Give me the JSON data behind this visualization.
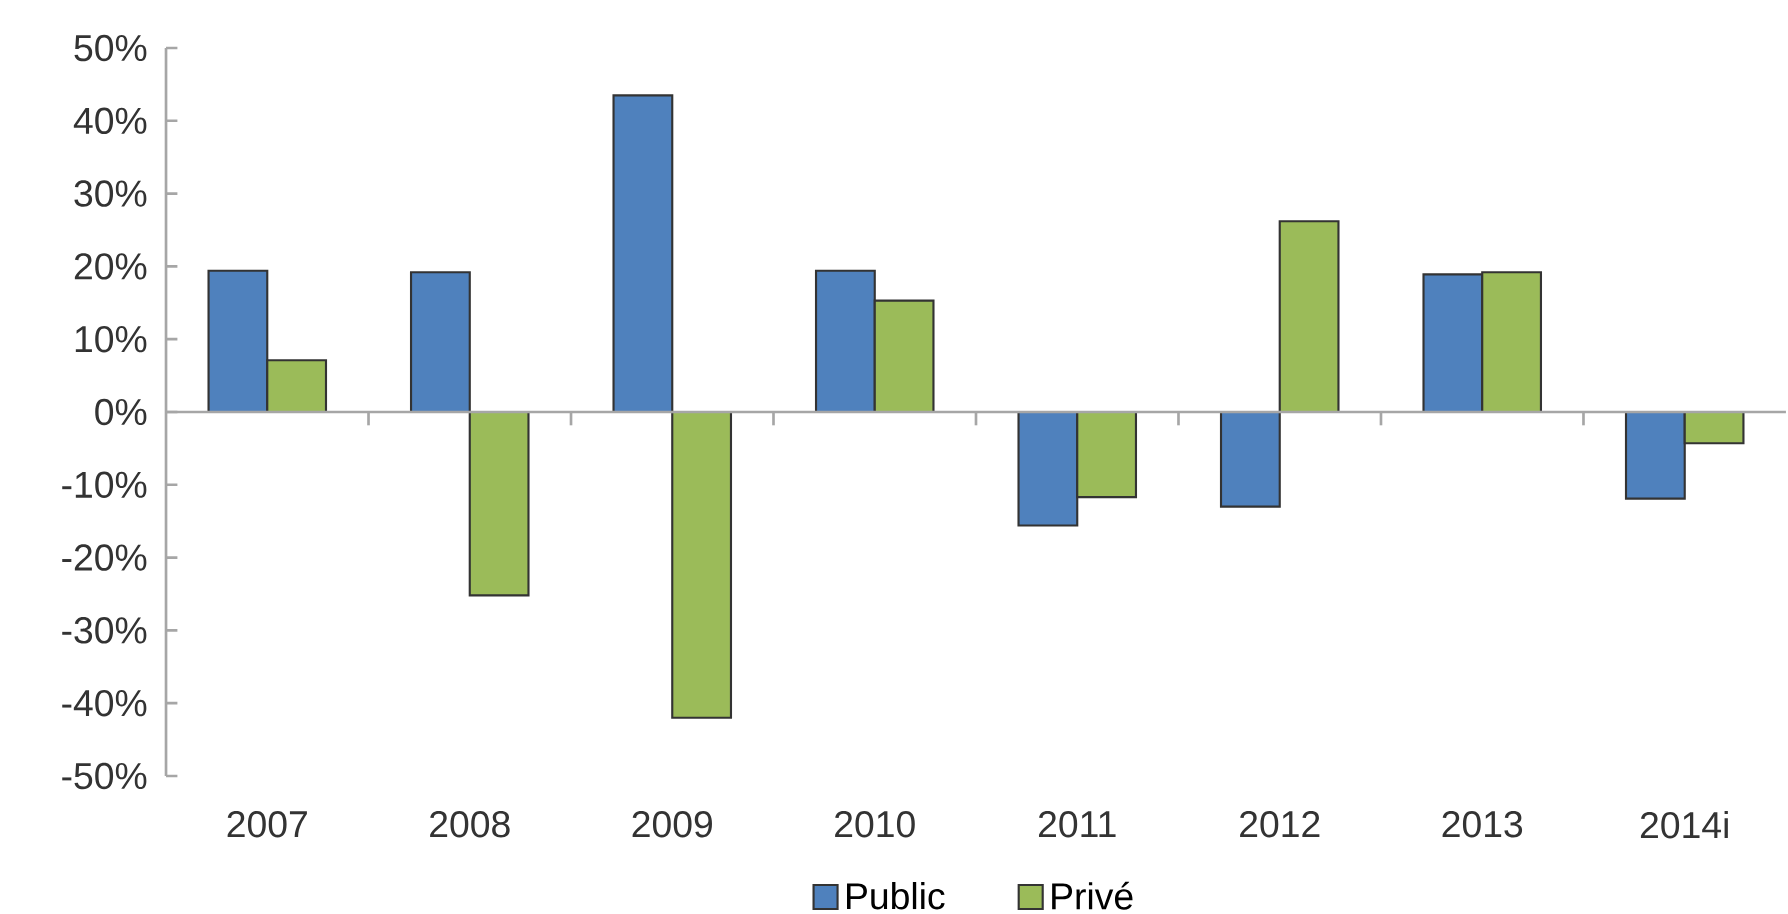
{
  "chart_data": {
    "type": "bar",
    "categories": [
      "2007",
      "2008",
      "2009",
      "2010",
      "2011",
      "2012",
      "2013",
      "2014i"
    ],
    "series": [
      {
        "name": "Public",
        "color": "#4f81bd",
        "values": [
          19.4,
          19.2,
          43.5,
          19.4,
          -15.6,
          -13.0,
          18.9,
          -11.9
        ]
      },
      {
        "name": "Privé",
        "color": "#9bbb59",
        "values": [
          7.1,
          -25.2,
          -42.0,
          15.3,
          -11.7,
          26.2,
          19.2,
          -4.3
        ]
      }
    ],
    "ylim": [
      -50,
      50
    ],
    "yticks": [
      {
        "value": -50,
        "label": "-50%"
      },
      {
        "value": -40,
        "label": "-40%"
      },
      {
        "value": -30,
        "label": "-30%"
      },
      {
        "value": -20,
        "label": "-20%"
      },
      {
        "value": -10,
        "label": "-10%"
      },
      {
        "value": 0,
        "label": "0%"
      },
      {
        "value": 10,
        "label": "10%"
      },
      {
        "value": 20,
        "label": "20%"
      },
      {
        "value": 30,
        "label": "30%"
      },
      {
        "value": 40,
        "label": "40%"
      },
      {
        "value": 50,
        "label": "50%"
      }
    ],
    "grid": false,
    "ref_lines": [
      {
        "axis": "y",
        "value": 0,
        "color": "#a6a6a6"
      }
    ],
    "legend": "bottom"
  }
}
